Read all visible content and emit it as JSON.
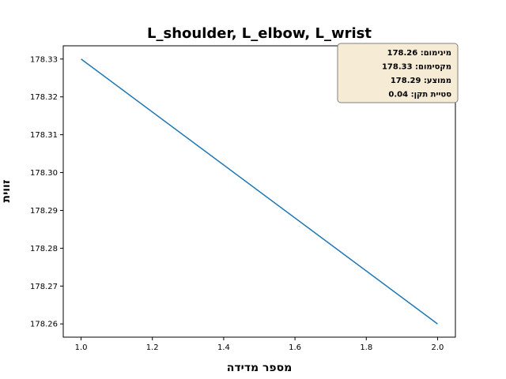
{
  "chart_data": {
    "type": "line",
    "title": "L_shoulder, L_elbow, L_wrist",
    "xlabel": "מספר מדידה",
    "ylabel": "זווית",
    "x": [
      1.0,
      2.0
    ],
    "series": [
      {
        "values": [
          178.33,
          178.26
        ],
        "color": "#1f77b4"
      }
    ],
    "xlim": [
      0.95,
      2.05
    ],
    "ylim": [
      178.2565,
      178.3335
    ],
    "xticks": [
      1.0,
      1.2,
      1.4,
      1.6,
      1.8,
      2.0
    ],
    "xtick_labels": [
      "1.0",
      "1.2",
      "1.4",
      "1.6",
      "1.8",
      "2.0"
    ],
    "yticks": [
      178.26,
      178.27,
      178.28,
      178.29,
      178.3,
      178.31,
      178.32,
      178.33
    ],
    "ytick_labels": [
      "178.26",
      "178.27",
      "178.28",
      "178.29",
      "178.30",
      "178.31",
      "178.32",
      "178.33"
    ],
    "grid": false,
    "stats_box": {
      "position": "top-right",
      "lines": [
        "מינימום: 178.26",
        "מקסימום: 178.33",
        "ממוצע: 178.29",
        "סטיית תקן: 0.04"
      ],
      "background": "#f6ecd6",
      "border": "#7f7f7f"
    }
  }
}
